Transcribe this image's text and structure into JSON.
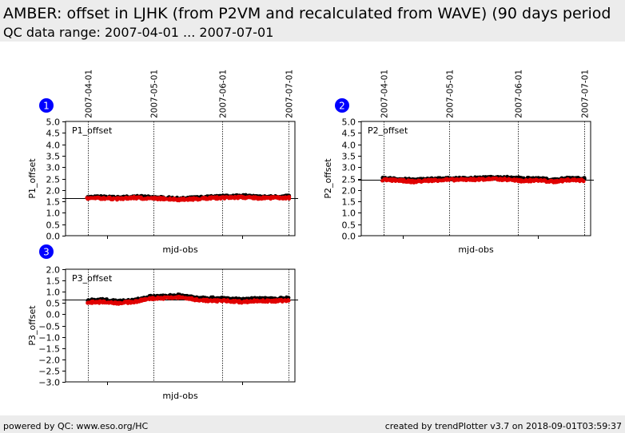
{
  "header": {
    "title": "AMBER: offset in LJHK (from P2VM and recalculated from WAVE) (90 days period",
    "subtitle": "QC data range: 2007-04-01 ... 2007-07-01"
  },
  "footer": {
    "left": "powered by QC: www.eso.org/HC",
    "right": "created by trendPlotter v3.7 on 2018-09-01T03:59:37"
  },
  "colors": {
    "marker_black": "#000000",
    "marker_red": "#e00000",
    "badge": "#0000ff",
    "panel_bg": "#ececec"
  },
  "chart_data": [
    {
      "type": "scatter",
      "badge": "1",
      "legend": "P1_offset",
      "ylabel": "P1_offset",
      "xlabel": "mjd-obs",
      "date_ticks": [
        "2007-04-01",
        "2007-05-01",
        "2007-06-01",
        "2007-07-01"
      ],
      "yticks": [
        "0.0",
        "0.5",
        "1.0",
        "1.5",
        "2.0",
        "2.5",
        "3.0",
        "3.5",
        "4.0",
        "4.5",
        "5.0"
      ],
      "ylim": [
        0,
        5
      ],
      "reference_line": 1.65,
      "series": [
        {
          "color": "#000000",
          "x": [
            "2007-04-01",
            "2007-04-08",
            "2007-04-15",
            "2007-04-22",
            "2007-04-29",
            "2007-05-06",
            "2007-05-13",
            "2007-05-20",
            "2007-05-27",
            "2007-06-03",
            "2007-06-10",
            "2007-06-17",
            "2007-06-24",
            "2007-07-01"
          ],
          "y": [
            1.68,
            1.7,
            1.66,
            1.72,
            1.68,
            1.66,
            1.62,
            1.66,
            1.7,
            1.72,
            1.76,
            1.7,
            1.7,
            1.72
          ]
        },
        {
          "color": "#e00000",
          "x": [
            "2007-04-01",
            "2007-04-08",
            "2007-04-15",
            "2007-04-22",
            "2007-04-29",
            "2007-05-06",
            "2007-05-13",
            "2007-05-20",
            "2007-05-27",
            "2007-06-03",
            "2007-06-10",
            "2007-06-17",
            "2007-06-24",
            "2007-07-01"
          ],
          "y": [
            1.63,
            1.64,
            1.61,
            1.66,
            1.63,
            1.62,
            1.58,
            1.61,
            1.65,
            1.66,
            1.68,
            1.65,
            1.66,
            1.66
          ]
        }
      ]
    },
    {
      "type": "scatter",
      "badge": "2",
      "legend": "P2_offset",
      "ylabel": "P2_offset",
      "xlabel": "mjd-obs",
      "date_ticks": [
        "2007-04-01",
        "2007-05-01",
        "2007-06-01",
        "2007-07-01"
      ],
      "yticks": [
        "0.0",
        "0.5",
        "1.0",
        "1.5",
        "2.0",
        "2.5",
        "3.0",
        "3.5",
        "4.0",
        "4.5",
        "5.0"
      ],
      "ylim": [
        0,
        5
      ],
      "reference_line": 2.45,
      "series": [
        {
          "color": "#000000",
          "x": [
            "2007-04-01",
            "2007-04-08",
            "2007-04-15",
            "2007-04-22",
            "2007-04-29",
            "2007-05-06",
            "2007-05-13",
            "2007-05-20",
            "2007-05-27",
            "2007-06-03",
            "2007-06-10",
            "2007-06-17",
            "2007-06-24",
            "2007-07-01"
          ],
          "y": [
            2.5,
            2.48,
            2.44,
            2.48,
            2.5,
            2.5,
            2.52,
            2.54,
            2.56,
            2.5,
            2.5,
            2.44,
            2.52,
            2.5
          ]
        },
        {
          "color": "#e00000",
          "x": [
            "2007-04-01",
            "2007-04-08",
            "2007-04-15",
            "2007-04-22",
            "2007-04-29",
            "2007-05-06",
            "2007-05-13",
            "2007-05-20",
            "2007-05-27",
            "2007-06-03",
            "2007-06-10",
            "2007-06-17",
            "2007-06-24",
            "2007-07-01"
          ],
          "y": [
            2.44,
            2.42,
            2.36,
            2.42,
            2.44,
            2.45,
            2.46,
            2.48,
            2.46,
            2.4,
            2.42,
            2.36,
            2.44,
            2.42
          ]
        }
      ]
    },
    {
      "type": "scatter",
      "badge": "3",
      "legend": "P3_offset",
      "ylabel": "P3_offset",
      "xlabel": "mjd-obs",
      "date_ticks": [
        "2007-04-01",
        "2007-05-01",
        "2007-06-01",
        "2007-07-01"
      ],
      "yticks": [
        "2.0",
        "1.5",
        "1.0",
        "0.5",
        "0.0",
        "−0.5",
        "−1.0",
        "−1.5",
        "−2.0",
        "−2.5",
        "−3.0"
      ],
      "ylim": [
        -3,
        2
      ],
      "reference_line": 0.65,
      "series": [
        {
          "color": "#000000",
          "x": [
            "2007-04-01",
            "2007-04-08",
            "2007-04-15",
            "2007-04-22",
            "2007-04-29",
            "2007-05-06",
            "2007-05-13",
            "2007-05-20",
            "2007-05-27",
            "2007-06-03",
            "2007-06-10",
            "2007-06-17",
            "2007-06-24",
            "2007-07-01"
          ],
          "y": [
            0.62,
            0.65,
            0.58,
            0.62,
            0.78,
            0.8,
            0.85,
            0.75,
            0.72,
            0.7,
            0.65,
            0.7,
            0.68,
            0.72
          ]
        },
        {
          "color": "#e00000",
          "x": [
            "2007-04-01",
            "2007-04-08",
            "2007-04-15",
            "2007-04-22",
            "2007-04-29",
            "2007-05-06",
            "2007-05-13",
            "2007-05-20",
            "2007-05-27",
            "2007-06-03",
            "2007-06-10",
            "2007-06-17",
            "2007-06-24",
            "2007-07-01"
          ],
          "y": [
            0.52,
            0.55,
            0.5,
            0.55,
            0.7,
            0.72,
            0.75,
            0.65,
            0.6,
            0.6,
            0.55,
            0.6,
            0.58,
            0.62
          ]
        }
      ]
    }
  ]
}
